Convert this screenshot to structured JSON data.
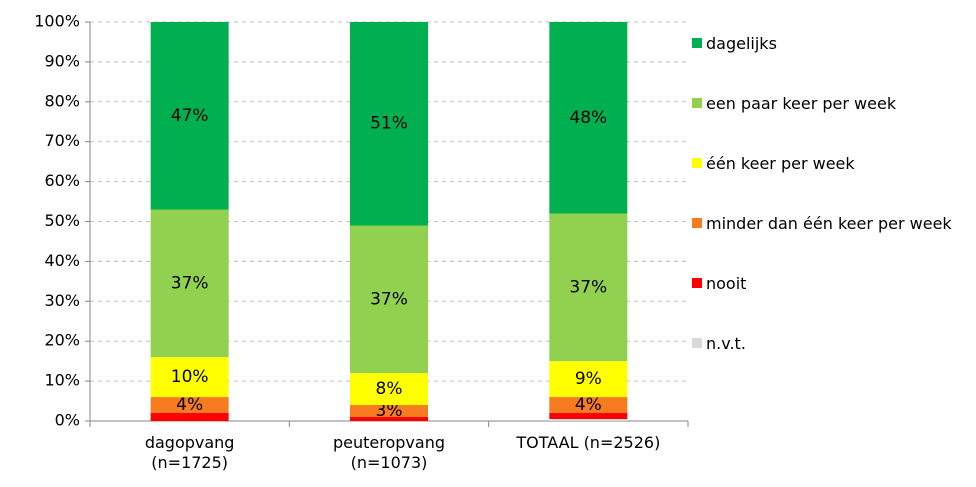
{
  "chart_data": {
    "type": "stacked_bar",
    "categories": [
      "dagopvang\n(n=1725)",
      "peuteropvang\n(n=1073)",
      "TOTAAL (n=2526)"
    ],
    "series": [
      {
        "name": "n.v.t.",
        "color": "#d9d9d9",
        "values": [
          0,
          0,
          0.5
        ]
      },
      {
        "name": "nooit",
        "color": "#ff0000",
        "values": [
          2,
          1,
          1.5
        ]
      },
      {
        "name": "minder dan één keer per week",
        "color": "#f67c1f",
        "values": [
          4,
          3,
          4
        ],
        "value_labels": [
          "4%",
          "3%",
          "4%"
        ]
      },
      {
        "name": "één keer per week",
        "color": "#ffff00",
        "values": [
          10,
          8,
          9
        ],
        "value_labels": [
          "10%",
          "8%",
          "9%"
        ]
      },
      {
        "name": "een paar keer per week",
        "color": "#92d050",
        "values": [
          37,
          37,
          37
        ],
        "value_labels": [
          "37%",
          "37%",
          "37%"
        ]
      },
      {
        "name": "dagelijks",
        "color": "#00b050",
        "values": [
          47,
          51,
          48
        ],
        "value_labels": [
          "47%",
          "51%",
          "48%"
        ]
      }
    ],
    "ylim": [
      0,
      100
    ],
    "yticks": [
      {
        "value": 0,
        "label": "0%"
      },
      {
        "value": 10,
        "label": "10%"
      },
      {
        "value": 20,
        "label": "20%"
      },
      {
        "value": 30,
        "label": "30%"
      },
      {
        "value": 40,
        "label": "40%"
      },
      {
        "value": 50,
        "label": "50%"
      },
      {
        "value": 60,
        "label": "60%"
      },
      {
        "value": 70,
        "label": "70%"
      },
      {
        "value": 80,
        "label": "80%"
      },
      {
        "value": 90,
        "label": "90%"
      },
      {
        "value": 100,
        "label": "100%"
      }
    ],
    "grid": true,
    "legend": "right"
  }
}
